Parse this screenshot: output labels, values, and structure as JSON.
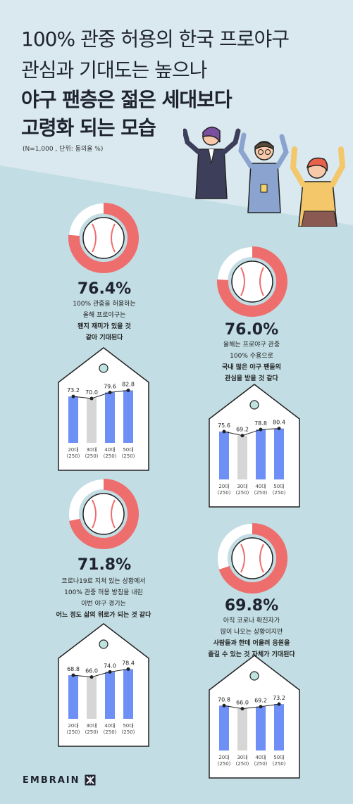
{
  "title": {
    "line1": "100% 관중 허용의 한국 프로야구",
    "line2": "관심과 기대도는 높으나",
    "line3": "야구 팬층은 젊은 세대보다",
    "line4": "고령화 되는 모습"
  },
  "note": "(N=1,000 , 단위: 동의율 %)",
  "items": [
    {
      "percent": "76.4%",
      "pct_value": 76.4,
      "desc1": "100% 관중을 허용하는",
      "desc2": "올해 프로야구는",
      "desc3": "왠지 재미가 있을 것",
      "desc4": "같아 기대된다"
    },
    {
      "percent": "76.0%",
      "pct_value": 76.0,
      "desc1": "올해는 프로야구 관중",
      "desc2": "100% 수용으로",
      "desc3": "국내 많은 야구 팬들의",
      "desc4": "관심을 받을 것 같다"
    },
    {
      "percent": "71.8%",
      "pct_value": 71.8,
      "desc1": "코로나19로  지쳐 있는  상황에서",
      "desc2": "100% 관중 허용 방침을 내린",
      "desc3": "이번 야구 경기는",
      "desc4": "어느 정도 삶의 위로가 되는 것 같다"
    },
    {
      "percent": "69.8%",
      "pct_value": 69.8,
      "desc1": "아직  코로나  확진자가",
      "desc2": "많이  나오는  상황이지만",
      "desc3": "사람들과 한데 어울려 응원을",
      "desc4": "즐길 수 있는 것 자체가 기대된다"
    }
  ],
  "chart_data": [
    {
      "type": "bar",
      "categories": [
        "20대\n(250)",
        "30대\n(250)",
        "40대\n(250)",
        "50대\n(250)"
      ],
      "values": [
        73.2,
        70.0,
        79.6,
        82.8
      ],
      "labels": [
        "73.2",
        "70.0",
        "79.6",
        "82.8"
      ]
    },
    {
      "type": "bar",
      "categories": [
        "20대\n(250)",
        "30대\n(250)",
        "40대\n(250)",
        "50대\n(250)"
      ],
      "values": [
        75.6,
        69.2,
        78.8,
        80.4
      ],
      "labels": [
        "75.6",
        "69.2",
        "78.8",
        "80.4"
      ]
    },
    {
      "type": "bar",
      "categories": [
        "20대\n(250)",
        "30대\n(250)",
        "40대\n(250)",
        "50대\n(250)"
      ],
      "values": [
        68.8,
        66.0,
        74.0,
        78.4
      ],
      "labels": [
        "68.8",
        "66.0",
        "74.0",
        "78.4"
      ]
    },
    {
      "type": "bar",
      "categories": [
        "20대\n(250)",
        "30대\n(250)",
        "40대\n(250)",
        "50대\n(250)"
      ],
      "values": [
        70.8,
        66.0,
        69.2,
        73.2
      ],
      "labels": [
        "70.8",
        "66.0",
        "69.2",
        "73.2"
      ]
    }
  ],
  "colors": {
    "bg_top": "#d8e8ef",
    "bg_bottom": "#bfdbe2",
    "ring": "#ee6e6e",
    "bar_blue": "#6e8ff5",
    "bar_grey": "#d6d6d6",
    "tag_fill": "#ffffff"
  },
  "logo": {
    "text": "EMBRAIN",
    "icon": "embrain-logo-icon"
  }
}
